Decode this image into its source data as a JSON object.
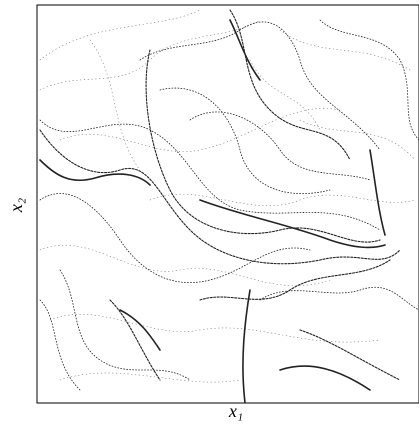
{
  "chart_data": {
    "type": "scatter",
    "xlabel": "x₁",
    "ylabel": "x₂",
    "color": "#222222"
  }
}
